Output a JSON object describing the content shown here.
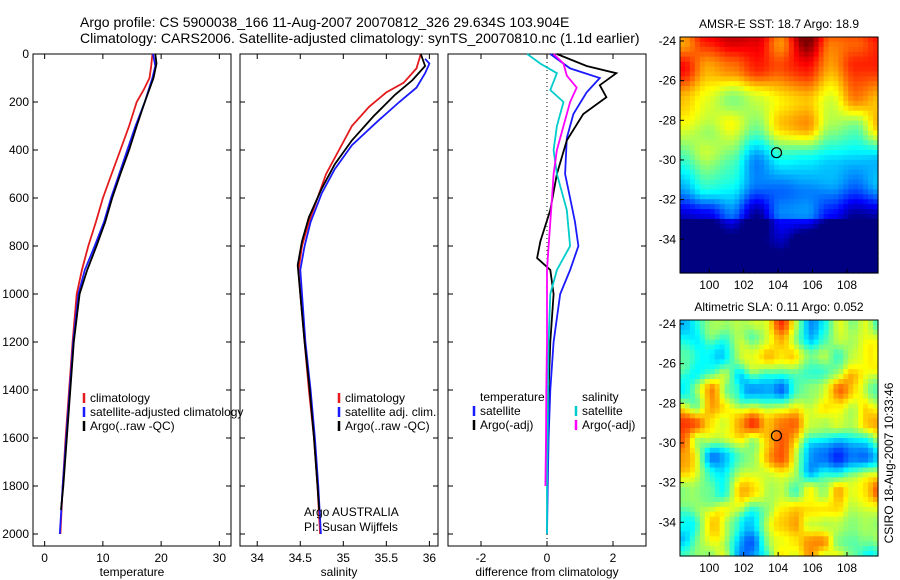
{
  "header": {
    "line1": "Argo profile: CS 5900038_166 11-Aug-2007 20070812_326 29.634S 103.904E",
    "line2": "Climatology: CARS2006. Satellite-adjusted climatology: synTS_20070810.nc (1.1d earlier)"
  },
  "footer_stamp": "CSIRO 18-Aug-2007 10:33:46",
  "chart_data": [
    {
      "type": "line",
      "id": "temperature",
      "xlabel": "temperature",
      "ylabel": "",
      "xlim": [
        -2,
        32
      ],
      "ylim": [
        2050,
        0
      ],
      "xticks": [
        0,
        10,
        20,
        30
      ],
      "yticks": [
        0,
        200,
        400,
        600,
        800,
        1000,
        1200,
        1400,
        1600,
        1800,
        2000
      ],
      "legend": [
        "climatology",
        "satellite-adjusted climatology",
        "Argo(..raw -QC)"
      ],
      "series": [
        {
          "name": "climatology",
          "color": "#e41a1c",
          "points": [
            [
              18.5,
              0
            ],
            [
              18.3,
              50
            ],
            [
              18,
              100
            ],
            [
              17,
              150
            ],
            [
              15.8,
              200
            ],
            [
              14.5,
              300
            ],
            [
              13,
              400
            ],
            [
              11.5,
              500
            ],
            [
              10,
              600
            ],
            [
              8.8,
              700
            ],
            [
              7.5,
              800
            ],
            [
              6.4,
              900
            ],
            [
              5.5,
              1000
            ],
            [
              4.8,
              1200
            ],
            [
              4.2,
              1400
            ],
            [
              3.6,
              1600
            ],
            [
              3.1,
              1800
            ],
            [
              2.7,
              2000
            ]
          ]
        },
        {
          "name": "satellite-adjusted climatology",
          "color": "#1a1aff",
          "points": [
            [
              18.6,
              0
            ],
            [
              19,
              50
            ],
            [
              18.5,
              100
            ],
            [
              17.2,
              200
            ],
            [
              15.6,
              300
            ],
            [
              14.2,
              400
            ],
            [
              12.8,
              500
            ],
            [
              11.4,
              600
            ],
            [
              10.2,
              700
            ],
            [
              8.6,
              800
            ],
            [
              6.9,
              900
            ],
            [
              5.8,
              1000
            ],
            [
              4.9,
              1200
            ],
            [
              4.3,
              1400
            ],
            [
              3.7,
              1600
            ],
            [
              3.1,
              1800
            ],
            [
              2.6,
              2000
            ]
          ]
        },
        {
          "name": "Argo(..raw -QC)",
          "color": "#000000",
          "points": [
            [
              19,
              0
            ],
            [
              19.2,
              40
            ],
            [
              18.7,
              100
            ],
            [
              17.2,
              200
            ],
            [
              15.8,
              300
            ],
            [
              14.5,
              400
            ],
            [
              13,
              500
            ],
            [
              11.6,
              600
            ],
            [
              10.4,
              700
            ],
            [
              8.9,
              800
            ],
            [
              7.3,
              900
            ],
            [
              6,
              1000
            ],
            [
              5,
              1200
            ],
            [
              4.4,
              1400
            ],
            [
              3.8,
              1600
            ],
            [
              3.2,
              1800
            ],
            [
              2.8,
              1900
            ]
          ]
        }
      ]
    },
    {
      "type": "line",
      "id": "salinity",
      "xlabel": "salinity",
      "ylabel": "",
      "xlim": [
        33.8,
        36.1
      ],
      "ylim": [
        2050,
        0
      ],
      "xticks": [
        34,
        34.5,
        35,
        35.5,
        36
      ],
      "legend": [
        "climatology",
        "satellite adj. clim.",
        "Argo(..raw -QC)"
      ],
      "annotation": [
        "Argo AUSTRALIA",
        "PI: Susan Wijffels"
      ],
      "series": [
        {
          "name": "climatology",
          "color": "#e41a1c",
          "points": [
            [
              35.9,
              0
            ],
            [
              35.85,
              60
            ],
            [
              35.7,
              120
            ],
            [
              35.5,
              160
            ],
            [
              35.3,
              220
            ],
            [
              35.1,
              300
            ],
            [
              34.95,
              400
            ],
            [
              34.8,
              500
            ],
            [
              34.7,
              600
            ],
            [
              34.6,
              700
            ],
            [
              34.52,
              800
            ],
            [
              34.48,
              900
            ],
            [
              34.5,
              1000
            ],
            [
              34.55,
              1200
            ],
            [
              34.6,
              1400
            ],
            [
              34.66,
              1600
            ],
            [
              34.7,
              1800
            ],
            [
              34.73,
              2000
            ]
          ]
        },
        {
          "name": "satellite adj. clim.",
          "color": "#1a1aff",
          "points": [
            [
              35.95,
              20
            ],
            [
              36,
              40
            ],
            [
              35.95,
              80
            ],
            [
              35.85,
              140
            ],
            [
              35.65,
              200
            ],
            [
              35.4,
              280
            ],
            [
              35.1,
              380
            ],
            [
              34.9,
              480
            ],
            [
              34.75,
              580
            ],
            [
              34.62,
              700
            ],
            [
              34.55,
              800
            ],
            [
              34.5,
              900
            ],
            [
              34.52,
              1000
            ],
            [
              34.56,
              1200
            ],
            [
              34.62,
              1400
            ],
            [
              34.67,
              1600
            ],
            [
              34.71,
              1800
            ],
            [
              34.74,
              2000
            ]
          ]
        },
        {
          "name": "Argo(..raw -QC)",
          "color": "#000000",
          "points": [
            [
              35.9,
              0
            ],
            [
              35.95,
              50
            ],
            [
              35.8,
              110
            ],
            [
              35.6,
              170
            ],
            [
              35.35,
              260
            ],
            [
              35.1,
              360
            ],
            [
              34.9,
              460
            ],
            [
              34.75,
              560
            ],
            [
              34.6,
              680
            ],
            [
              34.52,
              780
            ],
            [
              34.47,
              880
            ],
            [
              34.5,
              1000
            ],
            [
              34.55,
              1200
            ],
            [
              34.61,
              1400
            ],
            [
              34.66,
              1600
            ],
            [
              34.7,
              1800
            ],
            [
              34.72,
              1900
            ]
          ]
        }
      ]
    },
    {
      "type": "line",
      "id": "difference",
      "xlabel": "difference from climatology",
      "ylabel": "",
      "xlim": [
        -3,
        3
      ],
      "ylim": [
        2050,
        0
      ],
      "xticks": [
        -2,
        0,
        2
      ],
      "legend_headers": [
        "temperature",
        "salinity"
      ],
      "legend": [
        "satellite",
        "Argo(-adj)",
        "satellite",
        "Argo(-adj)"
      ],
      "series": [
        {
          "name": "temperature satellite",
          "color": "#1a1aff",
          "points": [
            [
              0.1,
              0
            ],
            [
              0.7,
              60
            ],
            [
              1.6,
              100
            ],
            [
              1.2,
              160
            ],
            [
              0.8,
              250
            ],
            [
              0.6,
              350
            ],
            [
              0.55,
              500
            ],
            [
              0.7,
              600
            ],
            [
              0.85,
              700
            ],
            [
              0.95,
              800
            ],
            [
              0.7,
              900
            ],
            [
              0.4,
              1000
            ],
            [
              0.2,
              1200
            ],
            [
              0.1,
              1400
            ],
            [
              0.05,
              1600
            ],
            [
              0.02,
              1800
            ],
            [
              0,
              2000
            ]
          ]
        },
        {
          "name": "temperature Argo(-adj)",
          "color": "#000000",
          "points": [
            [
              0.3,
              0
            ],
            [
              1.2,
              50
            ],
            [
              2.1,
              80
            ],
            [
              1.6,
              130
            ],
            [
              1.8,
              180
            ],
            [
              1.1,
              250
            ],
            [
              0.6,
              360
            ],
            [
              0.3,
              500
            ],
            [
              0.1,
              650
            ],
            [
              -0.2,
              780
            ],
            [
              -0.3,
              850
            ],
            [
              0.1,
              900
            ],
            [
              0.2,
              1000
            ],
            [
              0.1,
              1200
            ],
            [
              0.05,
              1400
            ],
            [
              0,
              1600
            ],
            [
              0,
              1800
            ]
          ]
        },
        {
          "name": "salinity satellite",
          "color": "#00cccc",
          "points": [
            [
              -0.6,
              0
            ],
            [
              -0.2,
              40
            ],
            [
              0.3,
              80
            ],
            [
              0.1,
              150
            ],
            [
              0.5,
              200
            ],
            [
              0.3,
              300
            ],
            [
              0.2,
              400
            ],
            [
              0.3,
              500
            ],
            [
              0.6,
              650
            ],
            [
              0.7,
              800
            ],
            [
              0.3,
              900
            ],
            [
              0.1,
              1000
            ],
            [
              0.05,
              1200
            ],
            [
              0.03,
              1400
            ],
            [
              0.02,
              1600
            ],
            [
              0,
              1800
            ],
            [
              0,
              2000
            ]
          ]
        },
        {
          "name": "salinity Argo(-adj)",
          "color": "#ff00ff",
          "points": [
            [
              0.2,
              0
            ],
            [
              0.5,
              40
            ],
            [
              0.6,
              90
            ],
            [
              0.9,
              140
            ],
            [
              0.7,
              200
            ],
            [
              0.5,
              300
            ],
            [
              0.3,
              400
            ],
            [
              0.2,
              500
            ],
            [
              0.15,
              600
            ],
            [
              0.1,
              700
            ],
            [
              0.05,
              800
            ],
            [
              0,
              900
            ],
            [
              0,
              1000
            ],
            [
              0,
              1200
            ],
            [
              -0.02,
              1400
            ],
            [
              -0.03,
              1600
            ],
            [
              -0.05,
              1800
            ]
          ]
        }
      ]
    },
    {
      "type": "heatmap",
      "id": "sst",
      "title": "AMSR-E SST: 18.7 Argo: 18.9",
      "xlim": [
        98.3,
        109.8
      ],
      "ylim": [
        -35.7,
        -23.8
      ],
      "xticks": [
        100,
        102,
        104,
        106,
        108
      ],
      "yticks": [
        -24,
        -26,
        -28,
        -30,
        -32,
        -34
      ],
      "marker": {
        "lon": 103.904,
        "lat": -29.634
      }
    },
    {
      "type": "heatmap",
      "id": "sla",
      "title": "Altimetric SLA: 0.11 Argo: 0.052",
      "xlim": [
        98.3,
        109.8
      ],
      "ylim": [
        -35.7,
        -23.8
      ],
      "xticks": [
        100,
        102,
        104,
        106,
        108
      ],
      "yticks": [
        -24,
        -26,
        -28,
        -30,
        -32,
        -34
      ],
      "marker": {
        "lon": 103.904,
        "lat": -29.634
      }
    }
  ]
}
